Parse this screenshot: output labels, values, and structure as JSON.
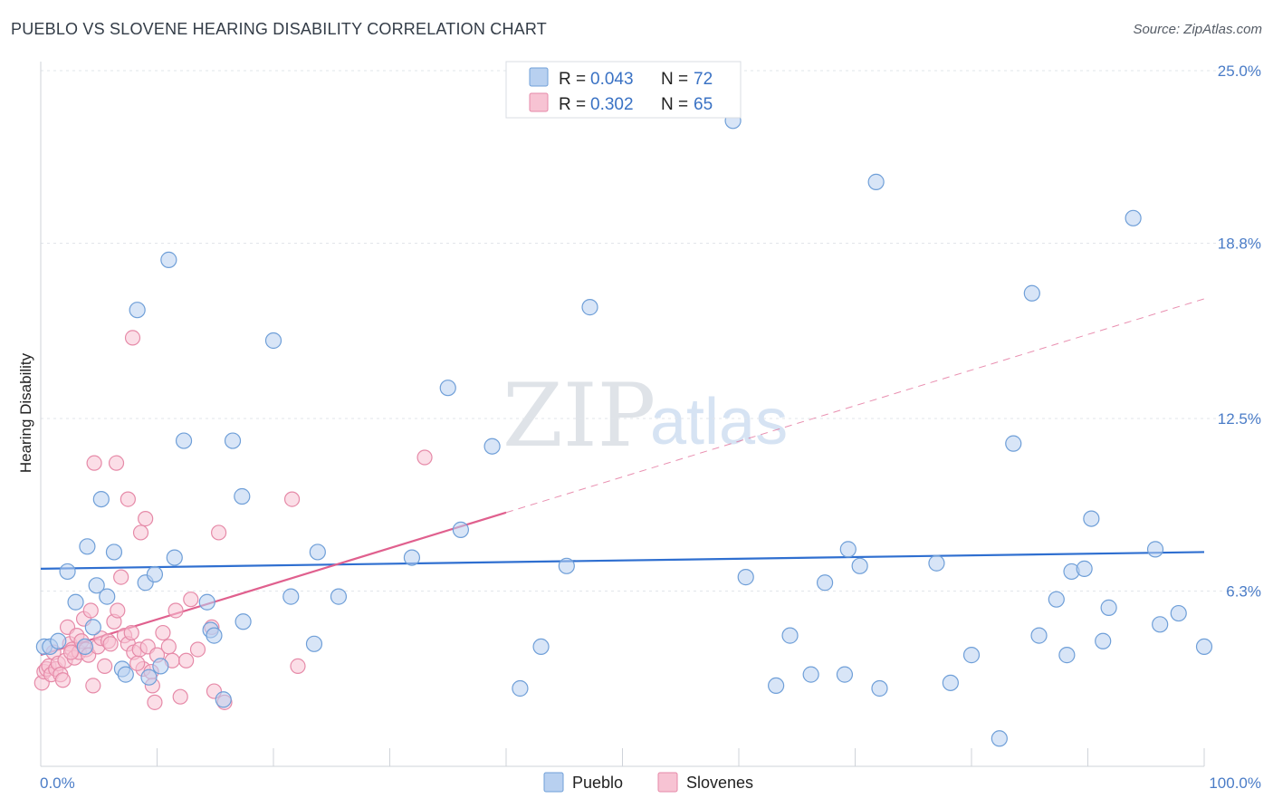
{
  "title": "PUEBLO VS SLOVENE HEARING DISABILITY CORRELATION CHART",
  "source": "Source: ZipAtlas.com",
  "watermark": {
    "zip": "ZIP",
    "atlas": "atlas"
  },
  "colors": {
    "pueblo_fill": "#b8d0f0",
    "pueblo_stroke": "#6f9fd8",
    "pueblo_line": "#2f6fd0",
    "slovenes_fill": "#f7c3d3",
    "slovenes_stroke": "#e68aa8",
    "slovenes_line": "#e0608e",
    "tick_label": "#4a7cc7",
    "grid": "#e2e5ea"
  },
  "legend": {
    "rows": [
      {
        "r_label": "R = ",
        "r_value": "0.043",
        "n_label": "N = ",
        "n_value": "72"
      },
      {
        "r_label": "R = ",
        "r_value": "0.302",
        "n_label": "N = ",
        "n_value": "65"
      }
    ]
  },
  "chart_data": {
    "type": "scatter",
    "title": "PUEBLO VS SLOVENE HEARING DISABILITY CORRELATION CHART",
    "xlabel": "",
    "ylabel": "Hearing Disability",
    "xlim": [
      0,
      100
    ],
    "ylim": [
      0,
      25.0
    ],
    "x_tick_labels": [
      "0.0%",
      "100.0%"
    ],
    "y_ticks": [
      6.3,
      12.5,
      18.8,
      25.0
    ],
    "y_tick_labels": [
      "6.3%",
      "12.5%",
      "18.8%",
      "25.0%"
    ],
    "grid": true,
    "legend_position": "bottom-center",
    "series": [
      {
        "name": "Pueblo",
        "R": 0.043,
        "N": 72,
        "trend": {
          "x": [
            0,
            100
          ],
          "y": [
            7.1,
            7.7
          ],
          "dashed_from": null
        },
        "points": [
          [
            0.3,
            4.3
          ],
          [
            0.8,
            4.3
          ],
          [
            1.5,
            4.5
          ],
          [
            2.3,
            7.0
          ],
          [
            3.0,
            5.9
          ],
          [
            3.8,
            4.3
          ],
          [
            4.0,
            7.9
          ],
          [
            4.5,
            5.0
          ],
          [
            4.8,
            6.5
          ],
          [
            5.2,
            9.6
          ],
          [
            5.7,
            6.1
          ],
          [
            6.3,
            7.7
          ],
          [
            7.0,
            3.5
          ],
          [
            7.3,
            3.3
          ],
          [
            8.3,
            16.4
          ],
          [
            9.0,
            6.6
          ],
          [
            9.3,
            3.2
          ],
          [
            9.8,
            6.9
          ],
          [
            10.3,
            3.6
          ],
          [
            11.0,
            18.2
          ],
          [
            11.5,
            7.5
          ],
          [
            12.3,
            11.7
          ],
          [
            14.3,
            5.9
          ],
          [
            14.6,
            4.9
          ],
          [
            14.9,
            4.7
          ],
          [
            15.7,
            2.4
          ],
          [
            16.5,
            11.7
          ],
          [
            17.3,
            9.7
          ],
          [
            17.4,
            5.2
          ],
          [
            20.0,
            15.3
          ],
          [
            21.5,
            6.1
          ],
          [
            23.5,
            4.4
          ],
          [
            23.8,
            7.7
          ],
          [
            25.6,
            6.1
          ],
          [
            31.9,
            7.5
          ],
          [
            35.0,
            13.6
          ],
          [
            36.1,
            8.5
          ],
          [
            38.8,
            11.5
          ],
          [
            41.2,
            2.8
          ],
          [
            43.0,
            4.3
          ],
          [
            45.2,
            7.2
          ],
          [
            47.2,
            16.5
          ],
          [
            59.5,
            23.2
          ],
          [
            60.6,
            6.8
          ],
          [
            63.2,
            2.9
          ],
          [
            64.4,
            4.7
          ],
          [
            66.2,
            3.3
          ],
          [
            67.4,
            6.6
          ],
          [
            69.1,
            3.3
          ],
          [
            69.4,
            7.8
          ],
          [
            70.4,
            7.2
          ],
          [
            71.8,
            21.0
          ],
          [
            72.1,
            2.8
          ],
          [
            77.0,
            7.3
          ],
          [
            78.2,
            3.0
          ],
          [
            80.0,
            4.0
          ],
          [
            82.4,
            1.0
          ],
          [
            83.6,
            11.6
          ],
          [
            85.2,
            17.0
          ],
          [
            85.8,
            4.7
          ],
          [
            87.3,
            6.0
          ],
          [
            88.2,
            4.0
          ],
          [
            88.6,
            7.0
          ],
          [
            89.7,
            7.1
          ],
          [
            90.3,
            8.9
          ],
          [
            91.3,
            4.5
          ],
          [
            91.8,
            5.7
          ],
          [
            93.9,
            19.7
          ],
          [
            95.8,
            7.8
          ],
          [
            96.2,
            5.1
          ],
          [
            97.8,
            5.5
          ],
          [
            100.0,
            4.3
          ]
        ]
      },
      {
        "name": "Slovenes",
        "R": 0.302,
        "N": 65,
        "trend": {
          "x": [
            0,
            100
          ],
          "y": [
            4.0,
            16.8
          ],
          "solid_to_x": 40
        },
        "points": [
          [
            0.1,
            3.0
          ],
          [
            0.3,
            3.4
          ],
          [
            0.5,
            3.5
          ],
          [
            0.7,
            3.6
          ],
          [
            0.9,
            3.3
          ],
          [
            1.1,
            4.1
          ],
          [
            1.3,
            3.5
          ],
          [
            1.5,
            3.7
          ],
          [
            1.7,
            3.3
          ],
          [
            1.9,
            3.1
          ],
          [
            2.1,
            3.8
          ],
          [
            2.3,
            5.0
          ],
          [
            2.5,
            4.4
          ],
          [
            2.7,
            4.2
          ],
          [
            2.9,
            3.9
          ],
          [
            3.1,
            4.7
          ],
          [
            3.3,
            4.1
          ],
          [
            3.5,
            4.5
          ],
          [
            3.7,
            5.3
          ],
          [
            3.9,
            4.2
          ],
          [
            4.1,
            4.0
          ],
          [
            4.3,
            5.6
          ],
          [
            4.5,
            2.9
          ],
          [
            4.6,
            10.9
          ],
          [
            4.9,
            4.3
          ],
          [
            5.2,
            4.6
          ],
          [
            5.5,
            3.6
          ],
          [
            5.8,
            4.5
          ],
          [
            6.0,
            4.4
          ],
          [
            6.3,
            5.2
          ],
          [
            6.6,
            5.6
          ],
          [
            6.5,
            10.9
          ],
          [
            6.9,
            6.8
          ],
          [
            7.2,
            4.7
          ],
          [
            7.5,
            4.4
          ],
          [
            7.8,
            4.8
          ],
          [
            8.0,
            4.1
          ],
          [
            7.5,
            9.6
          ],
          [
            8.5,
            4.2
          ],
          [
            8.8,
            3.5
          ],
          [
            9.2,
            4.3
          ],
          [
            9.5,
            3.4
          ],
          [
            9.8,
            2.3
          ],
          [
            10.0,
            4.0
          ],
          [
            10.5,
            4.8
          ],
          [
            11.0,
            4.3
          ],
          [
            11.3,
            3.8
          ],
          [
            11.6,
            5.6
          ],
          [
            12.0,
            2.5
          ],
          [
            12.5,
            3.8
          ],
          [
            12.9,
            6.0
          ],
          [
            13.5,
            4.2
          ],
          [
            14.7,
            5.0
          ],
          [
            14.9,
            2.7
          ],
          [
            15.3,
            8.4
          ],
          [
            15.8,
            2.3
          ],
          [
            7.9,
            15.4
          ],
          [
            8.6,
            8.4
          ],
          [
            9.0,
            8.9
          ],
          [
            21.6,
            9.6
          ],
          [
            22.1,
            3.6
          ],
          [
            33.0,
            11.1
          ],
          [
            8.3,
            3.7
          ],
          [
            9.6,
            2.9
          ],
          [
            2.6,
            4.1
          ]
        ]
      }
    ]
  }
}
